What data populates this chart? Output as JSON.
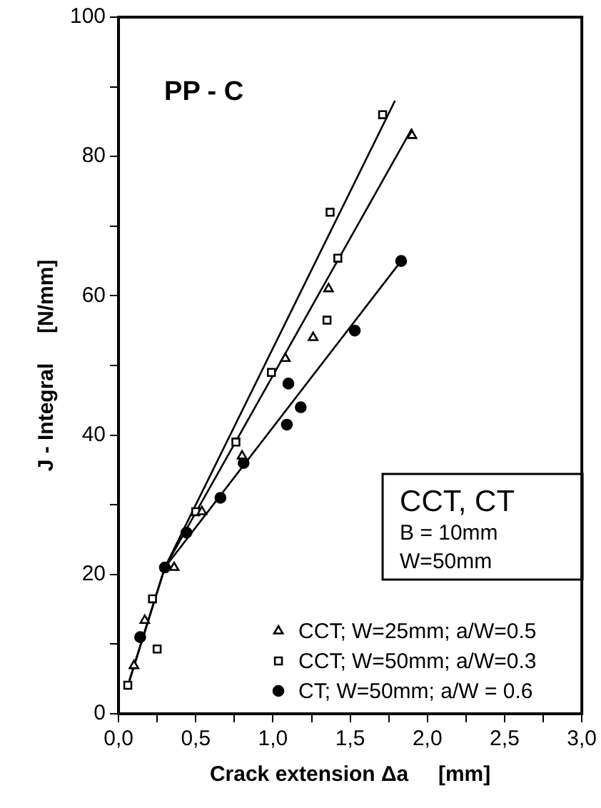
{
  "chart_data": {
    "type": "scatter",
    "title": "PP - C",
    "xlabel": "Crack extension Δa     [mm]",
    "ylabel": "J - Integral     [N/mm]",
    "annotations": [
      "CCT, CT",
      "B = 10mm",
      "W=50mm"
    ],
    "xlim": [
      0,
      3
    ],
    "xticks": [
      {
        "value": 0,
        "label": "0,0"
      },
      {
        "value": 0.25,
        "label": null
      },
      {
        "value": 0.5,
        "label": "0,5"
      },
      {
        "value": 0.75,
        "label": null
      },
      {
        "value": 1,
        "label": "1,0"
      },
      {
        "value": 1.25,
        "label": null
      },
      {
        "value": 1.5,
        "label": "1,5"
      },
      {
        "value": 1.75,
        "label": null
      },
      {
        "value": 2,
        "label": "2,0"
      },
      {
        "value": 2.25,
        "label": null
      },
      {
        "value": 2.5,
        "label": "2,5"
      },
      {
        "value": 2.75,
        "label": null
      },
      {
        "value": 3,
        "label": "3,0"
      }
    ],
    "ylim": [
      0,
      100
    ],
    "yticks": [
      0,
      {
        "value": 10,
        "label": null
      },
      20,
      {
        "value": 30,
        "label": null
      },
      40,
      {
        "value": 50,
        "label": null
      },
      60,
      {
        "value": 70,
        "label": null
      },
      80,
      {
        "value": 90,
        "label": null
      },
      100
    ],
    "grid": false,
    "legend": "bottom right",
    "series": [
      {
        "name": "CCT; W=25mm; a/W=0.5",
        "color": "#000000",
        "marker": "triangle",
        "x": [
          0.1,
          0.17,
          0.36,
          0.54,
          0.8,
          1.08,
          1.26,
          1.36,
          1.9
        ],
        "values": [
          6.9,
          13.4,
          21,
          29,
          37,
          51,
          54,
          61,
          83
        ]
      },
      {
        "name": "CCT; W=50mm; a/W=0.3",
        "color": "#000000",
        "marker": "square",
        "x": [
          0.06,
          0.22,
          0.25,
          0.5,
          0.76,
          0.99,
          1.35,
          1.42,
          1.37,
          1.71
        ],
        "values": [
          4.1,
          16.5,
          9.3,
          29,
          39,
          49,
          56.5,
          65.4,
          72,
          86
        ]
      },
      {
        "name": "CT; W=50mm; a/W = 0.6",
        "color": "#000000",
        "marker": "circle",
        "x": [
          0.14,
          0.3,
          0.44,
          0.66,
          0.81,
          1.09,
          1.18,
          1.1,
          1.53,
          1.83
        ],
        "values": [
          11,
          21,
          26,
          31,
          36,
          41.5,
          44,
          47.4,
          55,
          65
        ]
      },
      {
        "type": "line",
        "color": "#000000",
        "marker": "none",
        "x": [
          0.06,
          0.3,
          1.9
        ],
        "values": [
          4,
          21,
          84
        ]
      },
      {
        "type": "line",
        "color": "#000000",
        "marker": "none",
        "x": [
          0.06,
          0.3,
          1.79
        ],
        "values": [
          4,
          21,
          88
        ]
      },
      {
        "type": "line",
        "color": "#000000",
        "marker": "none",
        "x": [
          0.06,
          0.3,
          1.83
        ],
        "values": [
          4,
          21,
          65
        ]
      }
    ]
  }
}
